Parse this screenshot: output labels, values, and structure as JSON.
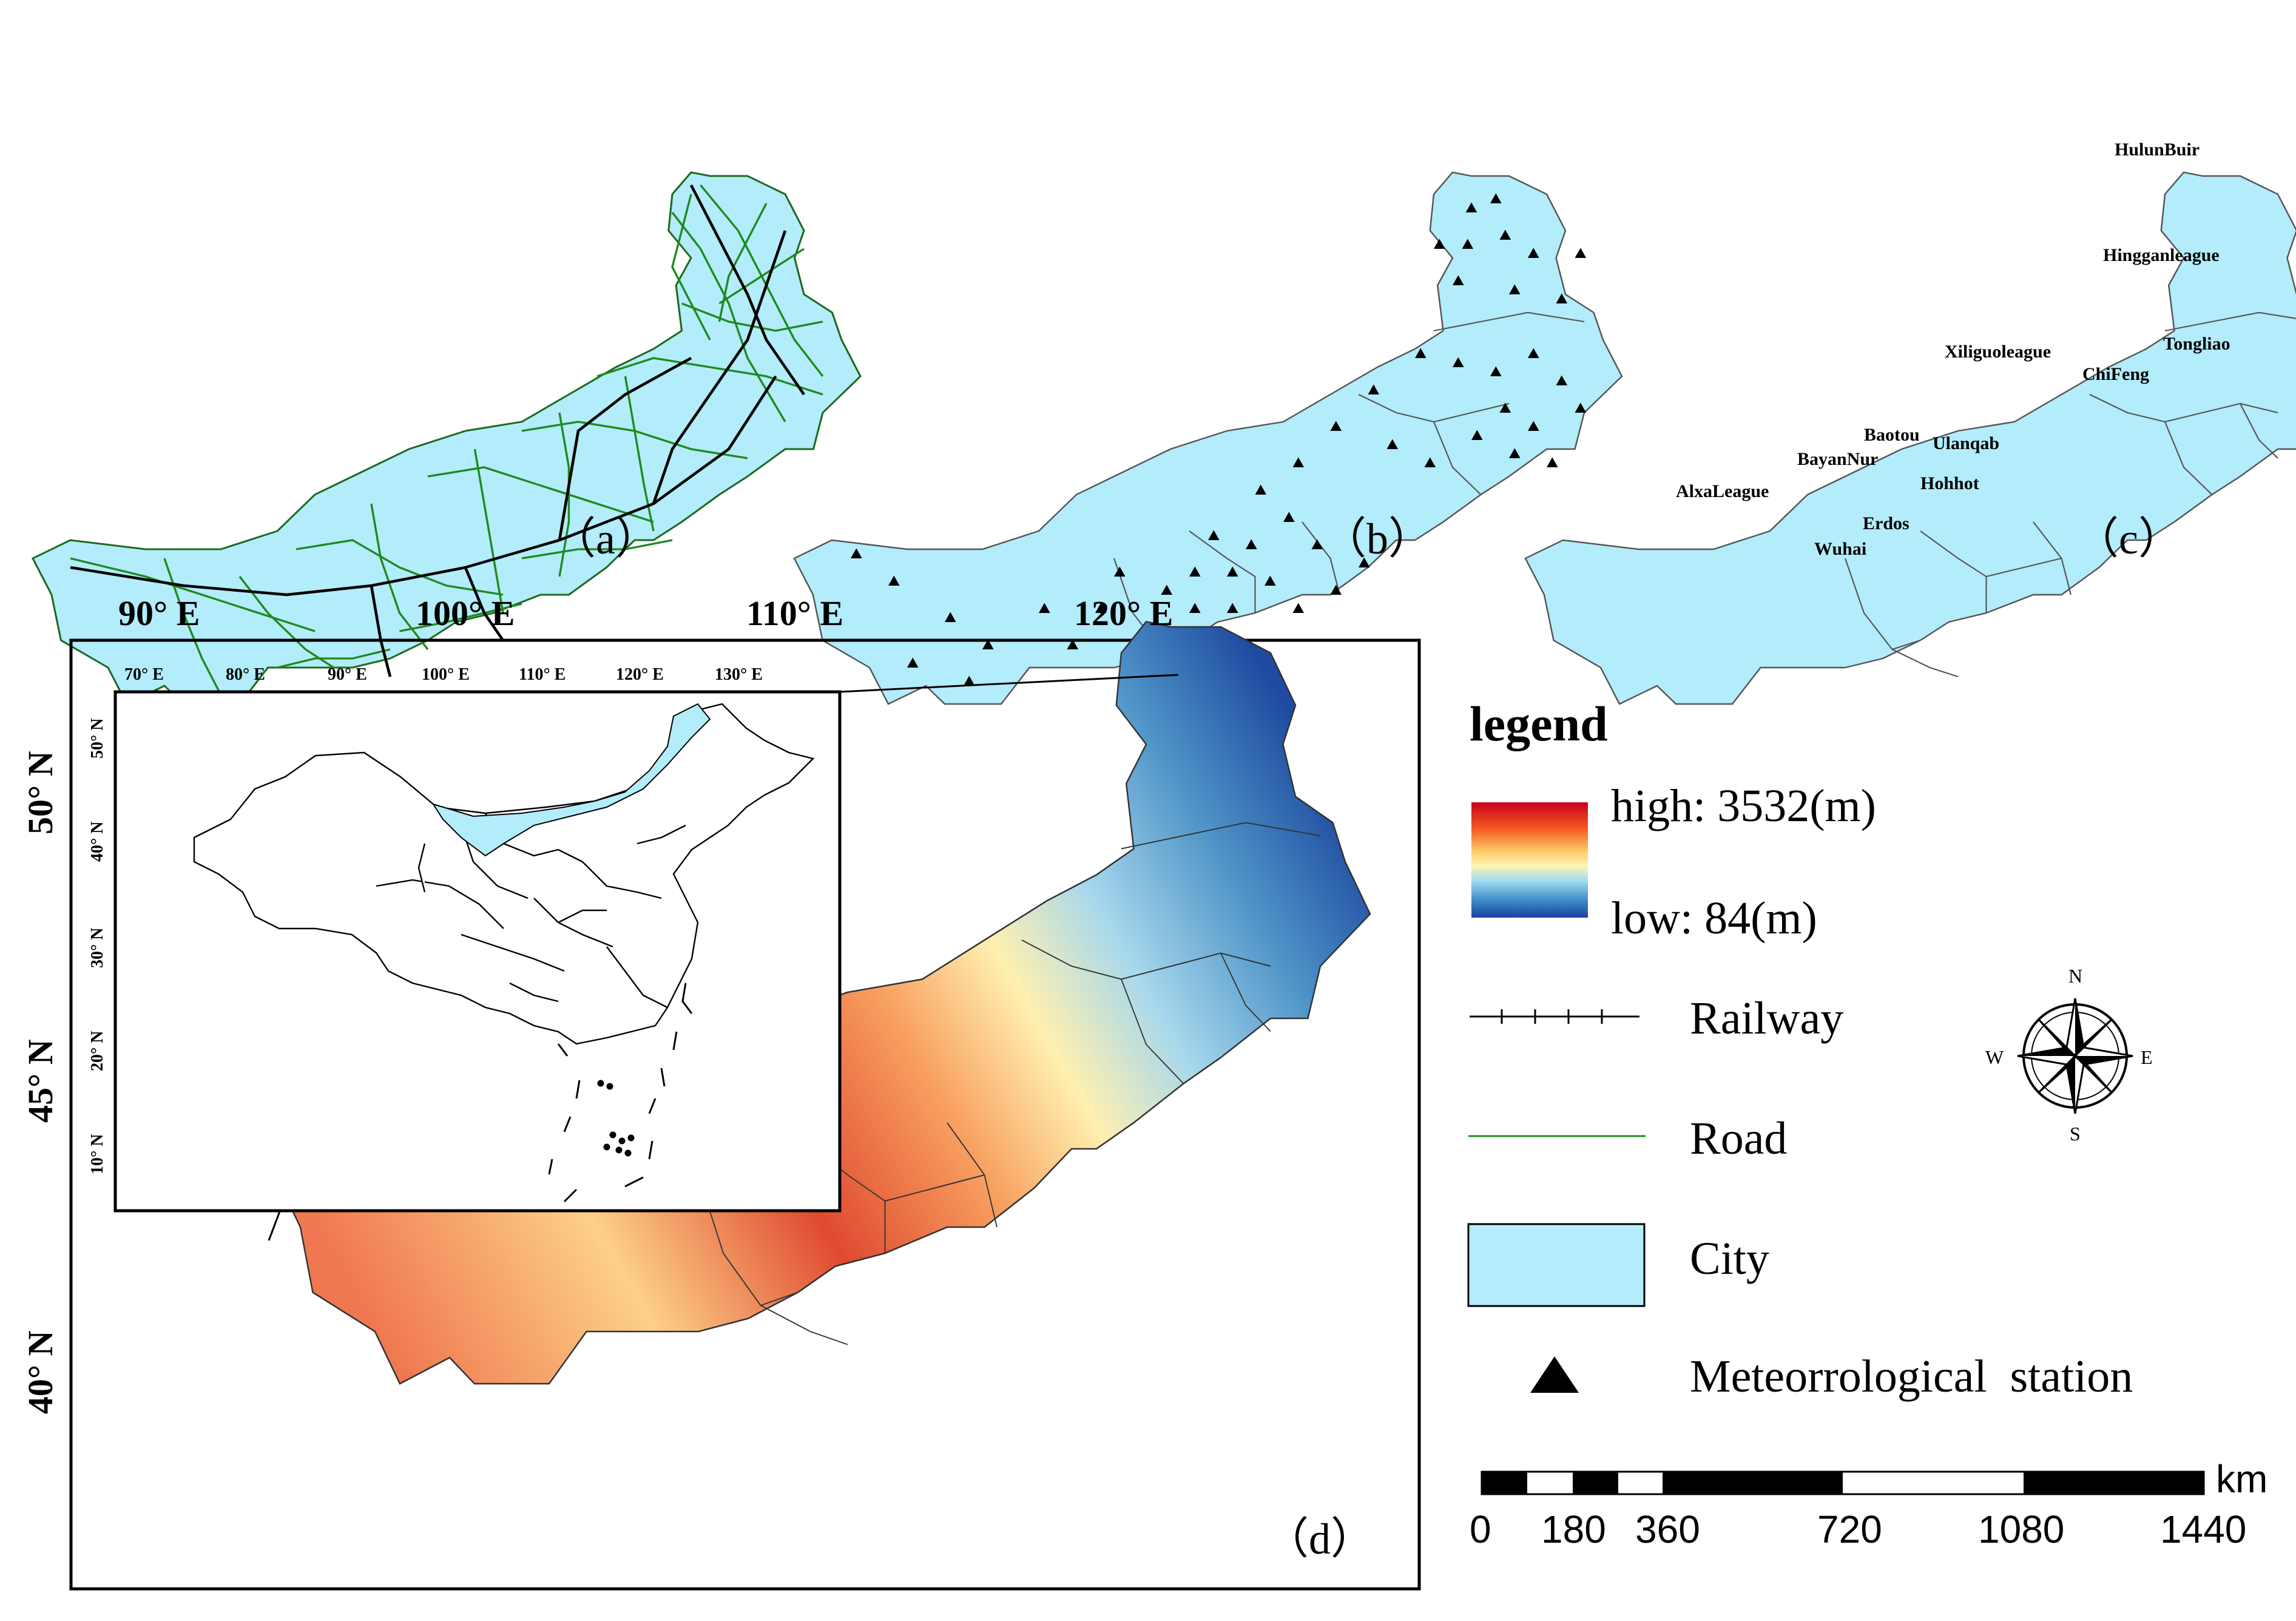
{
  "axes": {
    "lon_labels": [
      "90° E",
      "100° E",
      "110° E",
      "120° E"
    ],
    "lat_labels": [
      "50° N",
      "45° N",
      "40° N"
    ]
  },
  "panels": {
    "a": {
      "label": "（a）"
    },
    "b": {
      "label": "（b）"
    },
    "c": {
      "label": "（c）"
    },
    "d": {
      "label": "（d）"
    }
  },
  "cities": [
    "HulunBuir",
    "Hingganleague",
    "Xiliguoleague",
    "Tongliao",
    "ChiFeng",
    "Baotou",
    "Ulanqab",
    "BayanNur",
    "Hohhot",
    "AlxaLeague",
    "Erdos",
    "Wuhai"
  ],
  "inset": {
    "lon_labels": [
      "70° E",
      "80° E",
      "90° E",
      "100° E",
      "110° E",
      "120° E",
      "130° E"
    ],
    "lat_labels": [
      "50° N",
      "40° N",
      "30° N",
      "20° N",
      "10° N"
    ]
  },
  "legend": {
    "title": "legend",
    "high_label": "high: 3532(m)",
    "low_label": "low: 84(m)",
    "railway_label": "Railway",
    "road_label": "Road",
    "city_label": "City",
    "station_label": "Meteorrological  station",
    "elevation_high_m": 3532,
    "elevation_low_m": 84
  },
  "compass": {
    "n": "N",
    "s": "S",
    "e": "E",
    "w": "W"
  },
  "scale": {
    "unit": "km",
    "ticks": [
      "0",
      "180",
      "360",
      "720",
      "1080",
      "1440"
    ]
  },
  "colors": {
    "city_fill": "#b3ecfa",
    "road": "#1e8a1e",
    "railway": "#000000",
    "dem_high": "#c8001e",
    "dem_mid": "#fff5b4",
    "dem_low": "#1e40a0"
  }
}
